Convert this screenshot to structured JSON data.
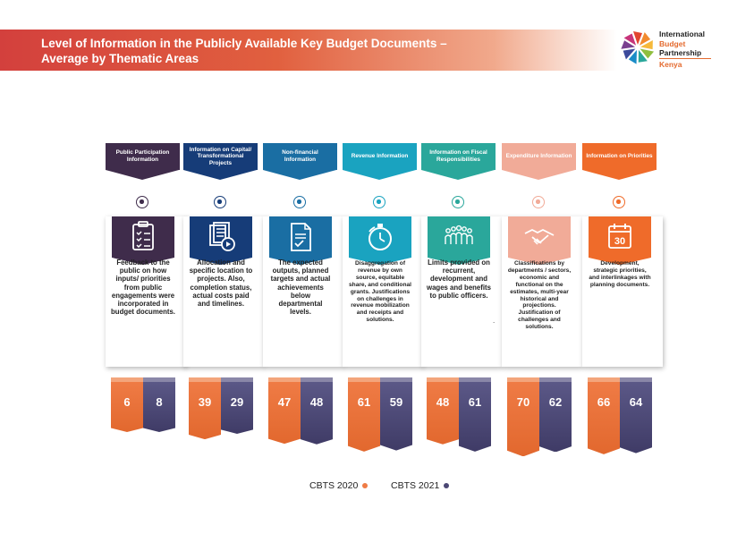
{
  "title": {
    "line1": "Level of Information in the Publicly Available Key Budget Documents –",
    "line2": "Average by Thematic Areas"
  },
  "logo": {
    "line1": "International",
    "line2": "Budget",
    "line3": "Partnership",
    "line4": "Kenya"
  },
  "colors": {
    "cbts2020": "#ef7b45",
    "cbts2021": "#4b4774"
  },
  "themes": [
    {
      "banner": "Public Participation Information",
      "color": "#3f2c4b",
      "icon": "clipboard-icon",
      "description": "Feedback to the public on how inputs/ priorities from public engagements were incorporated in budget documents.",
      "small": false
    },
    {
      "banner": "Information on Capital/ Transformational Projects",
      "color": "#163c78",
      "icon": "document-play-icon",
      "description": "Allocation and specific location to projects. Also, completion status, actual costs paid and timelines.",
      "small": false
    },
    {
      "banner": "Non-financial Information",
      "color": "#1a6ea3",
      "icon": "checked-document-icon",
      "description": "The expected outputs, planned targets and actual achievements below departmental levels.",
      "small": false
    },
    {
      "banner": "Revenue Information",
      "color": "#1aa3c0",
      "icon": "stopwatch-icon",
      "description": "Disaggregation of revenue by own source, equitable share, and conditional grants. Justifications on challenges in revenue mobilization and receipts and solutions.",
      "small": true
    },
    {
      "banner": "Information on Fiscal Responsibilities",
      "color": "#2aa79b",
      "icon": "people-group-icon",
      "description": "Limits provided on recurrent, development and wages and benefits to public officers.",
      "small": false
    },
    {
      "banner": "Expenditure Information",
      "color": "#f1ab98",
      "icon": "handshake-icon",
      "description": "Classifications by departments / sectors, economic and functional on the estimates, multi-year historical and projections. Justification of challenges and solutions.",
      "small": true
    },
    {
      "banner": "Information on Priorities",
      "color": "#ef6b2a",
      "icon": "calendar-30-icon",
      "calendar_day": "30",
      "description": "Development, strategic priorities, and interlinkages with planning documents.",
      "small": true
    }
  ],
  "chart_data": {
    "type": "bar",
    "categories": [
      "Public Participation Information",
      "Information on Capital/ Transformational Projects",
      "Non-financial Information",
      "Revenue Information",
      "Information on Fiscal Responsibilities",
      "Expenditure Information",
      "Information on Priorities"
    ],
    "series": [
      {
        "name": "CBTS 2020",
        "values": [
          6,
          39,
          47,
          61,
          48,
          70,
          66
        ]
      },
      {
        "name": "CBTS 2021",
        "values": [
          8,
          29,
          48,
          59,
          61,
          62,
          64
        ]
      }
    ],
    "title": "Level of Information in the Publicly Available Key Budget Documents – Average by Thematic Areas",
    "legend": "bottom-center"
  },
  "legend": {
    "label_2020": "CBTS 2020",
    "label_2021": "CBTS 2021"
  },
  "stray_mark": "."
}
